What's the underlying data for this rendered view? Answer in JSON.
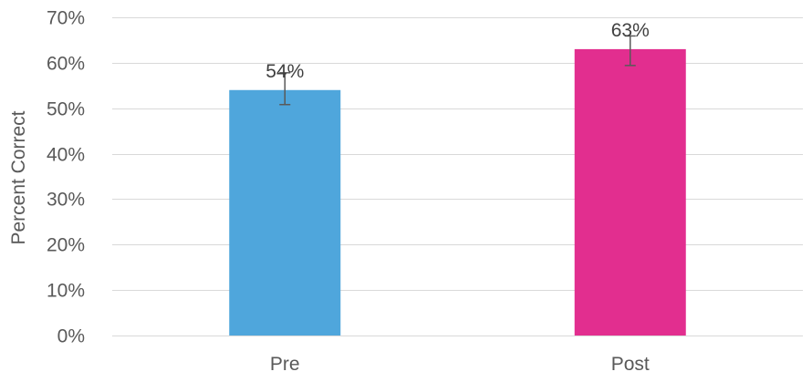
{
  "chart_data": {
    "type": "bar",
    "categories": [
      "Pre",
      "Post"
    ],
    "values": [
      54,
      63
    ],
    "data_labels": [
      "54%",
      "63%"
    ],
    "error_bars": [
      {
        "low": 50.8,
        "high": 57.8
      },
      {
        "low": 59.4,
        "high": 65.9
      }
    ],
    "bar_colors": [
      "#4fa6dc",
      "#e22e8f"
    ],
    "title": "",
    "xlabel": "",
    "ylabel": "Percent Correct",
    "ylim": [
      0,
      70
    ],
    "y_ticks": [
      0,
      10,
      20,
      30,
      40,
      50,
      60,
      70
    ],
    "y_tick_labels": [
      "0%",
      "10%",
      "20%",
      "30%",
      "40%",
      "50%",
      "60%",
      "70%"
    ],
    "grid": true,
    "legend": false
  }
}
